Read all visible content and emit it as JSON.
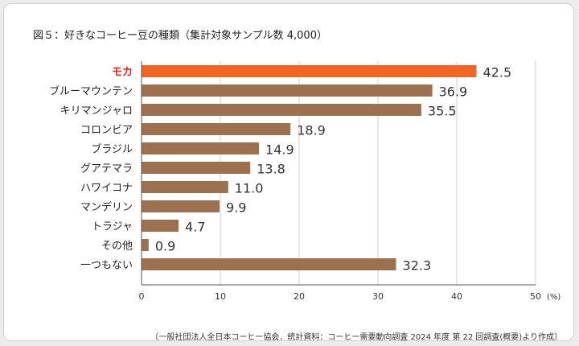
{
  "title": "図５：好きなコーヒー豆の種類（集計対象サンプル数 4,000）",
  "source": "〔一般社団法人全日本コーヒー協会．統計資料：コーヒー需要動向調査 2024 年度 第 22 回調査(概要)より作成〕",
  "colors": {
    "highlight_bar": "#f26522",
    "bar": "#9b7150",
    "highlight_label": "#e0241b",
    "label": "#222222"
  },
  "chart_data": {
    "type": "bar",
    "orientation": "horizontal",
    "categories": [
      "モカ",
      "ブルーマウンテン",
      "キリマンジャロ",
      "コロンビア",
      "ブラジル",
      "グアテマラ",
      "ハワイコナ",
      "マンデリン",
      "トラジャ",
      "その他",
      "一つもない"
    ],
    "values": [
      42.5,
      36.9,
      35.5,
      18.9,
      14.9,
      13.8,
      11.0,
      9.9,
      4.7,
      0.9,
      32.3
    ],
    "value_labels": [
      "42.5",
      "36.9",
      "35.5",
      "18.9",
      "14.9",
      "13.8",
      "11.0",
      "9.9",
      "4.7",
      "0.9",
      "32.3"
    ],
    "highlight_index": 0,
    "xlim": [
      0,
      50
    ],
    "xticks": [
      "0",
      "10",
      "20",
      "30",
      "40",
      "50"
    ],
    "x_unit": "(%)",
    "grid": true
  }
}
